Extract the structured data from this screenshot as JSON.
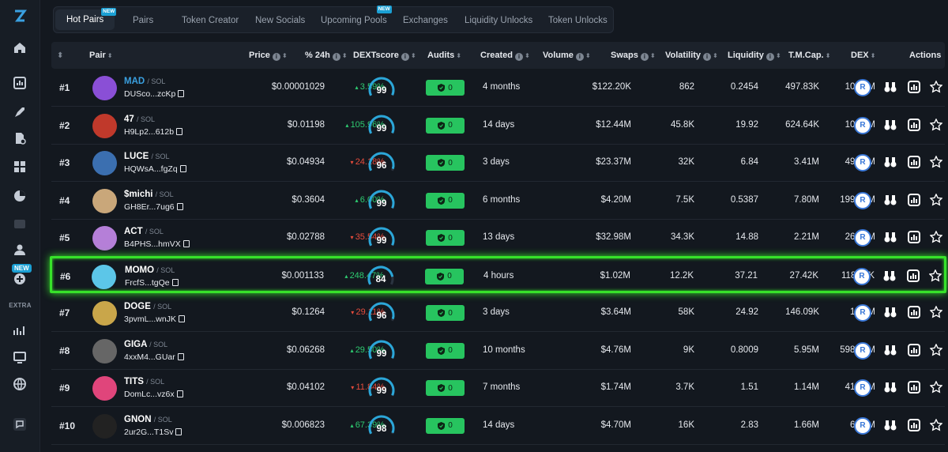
{
  "tabs": [
    {
      "label": "Hot Pairs",
      "badge": "NEW"
    },
    {
      "label": "Pairs"
    },
    {
      "label": "Token Creator"
    },
    {
      "label": "New Socials"
    },
    {
      "label": "Upcoming Pools",
      "badge": "NEW"
    },
    {
      "label": "Exchanges"
    },
    {
      "label": "Liquidity Unlocks"
    },
    {
      "label": "Token Unlocks"
    }
  ],
  "sidebar": {
    "new_badge": "NEW",
    "extra_label": "EXTRA",
    "icons": [
      "logo-icon",
      "home-icon",
      "chart-icon",
      "rocket-icon",
      "file-check-icon",
      "apps-icon",
      "pie-chart-icon",
      "wallet-icon",
      "user-icon",
      "plus-circle-icon",
      "growth-chart-icon",
      "monitor-icon",
      "globe-icon",
      "feedback-icon"
    ]
  },
  "columns": {
    "pair": "Pair",
    "price": "Price",
    "change": "% 24h",
    "dextscore": "DEXTscore",
    "audits": "Audits",
    "created": "Created",
    "volume": "Volume",
    "swaps": "Swaps",
    "volatility": "Volatility",
    "liquidity": "Liquidity",
    "tmcap": "T.M.Cap.",
    "dex": "DEX",
    "actions": "Actions"
  },
  "rows": [
    {
      "rank": "#1",
      "name": "MAD",
      "quote": "/ SOL",
      "addr": "DUSco...zcKp",
      "price": "$0.00001029",
      "change": "3.59%",
      "dir": "up",
      "score": 99,
      "audit": "0",
      "created": "4 months",
      "volume": "$122.20K",
      "swaps": "862",
      "volatility": "0.2454",
      "liquidity": "497.83K",
      "mcap": "10.29M",
      "highlight": false,
      "avatar_color": "#8a4fd6"
    },
    {
      "rank": "#2",
      "name": "47",
      "quote": "/ SOL",
      "addr": "H9Lp2...612b",
      "price": "$0.01198",
      "change": "105.96%",
      "dir": "up",
      "score": 99,
      "audit": "0",
      "created": "14 days",
      "volume": "$12.44M",
      "swaps": "45.8K",
      "volatility": "19.92",
      "liquidity": "624.64K",
      "mcap": "10.19M",
      "highlight": false,
      "avatar_color": "#c0392b"
    },
    {
      "rank": "#3",
      "name": "LUCE",
      "quote": "/ SOL",
      "addr": "HQWsA...fgZq",
      "price": "$0.04934",
      "change": "24.18%",
      "dir": "down",
      "score": 96,
      "audit": "0",
      "created": "3 days",
      "volume": "$23.37M",
      "swaps": "32K",
      "volatility": "6.84",
      "liquidity": "3.41M",
      "mcap": "49.74M",
      "highlight": false,
      "avatar_color": "#3b6fb0"
    },
    {
      "rank": "#4",
      "name": "$michi",
      "quote": "/ SOL",
      "addr": "GH8Er...7ug6",
      "price": "$0.3604",
      "change": "6.00%",
      "dir": "up",
      "score": 99,
      "audit": "0",
      "created": "6 months",
      "volume": "$4.20M",
      "swaps": "7.5K",
      "volatility": "0.5387",
      "liquidity": "7.80M",
      "mcap": "199.68M",
      "highlight": false,
      "avatar_color": "#c9a77a"
    },
    {
      "rank": "#5",
      "name": "ACT",
      "quote": "/ SOL",
      "addr": "B4PHS...hmVX",
      "price": "$0.02788",
      "change": "35.54%",
      "dir": "down",
      "score": 99,
      "audit": "0",
      "created": "13 days",
      "volume": "$32.98M",
      "swaps": "34.3K",
      "volatility": "14.88",
      "liquidity": "2.21M",
      "mcap": "26.41M",
      "highlight": false,
      "avatar_color": "#b57fd8"
    },
    {
      "rank": "#6",
      "name": "MOMO",
      "quote": "/ SOL",
      "addr": "FrcfS...tgQe",
      "price": "$0.001133",
      "change": "248.47%",
      "dir": "up",
      "score": 84,
      "audit": "0",
      "created": "4 hours",
      "volume": "$1.02M",
      "swaps": "12.2K",
      "volatility": "37.21",
      "liquidity": "27.42K",
      "mcap": "118.59K",
      "highlight": true,
      "avatar_color": "#5cc6e8"
    },
    {
      "rank": "#7",
      "name": "DOGE",
      "quote": "/ SOL",
      "addr": "3pvmL...wnJK",
      "price": "$0.1264",
      "change": "29.11%",
      "dir": "down",
      "score": 96,
      "audit": "0",
      "created": "3 days",
      "volume": "$3.64M",
      "swaps": "58K",
      "volatility": "24.92",
      "liquidity": "146.09K",
      "mcap": "1.26M",
      "highlight": false,
      "avatar_color": "#c9a64a"
    },
    {
      "rank": "#8",
      "name": "GIGA",
      "quote": "/ SOL",
      "addr": "4xxM4...GUar",
      "price": "$0.06268",
      "change": "29.50%",
      "dir": "up",
      "score": 99,
      "audit": "0",
      "created": "10 months",
      "volume": "$4.76M",
      "swaps": "9K",
      "volatility": "0.8009",
      "liquidity": "5.95M",
      "mcap": "598.89M",
      "highlight": false,
      "avatar_color": "#666666"
    },
    {
      "rank": "#9",
      "name": "TITS",
      "quote": "/ SOL",
      "addr": "DomLc...vz6x",
      "price": "$0.04102",
      "change": "11.84%",
      "dir": "down",
      "score": 99,
      "audit": "0",
      "created": "7 months",
      "volume": "$1.74M",
      "swaps": "3.7K",
      "volatility": "1.51",
      "liquidity": "1.14M",
      "mcap": "41.24M",
      "highlight": false,
      "avatar_color": "#e0457b"
    },
    {
      "rank": "#10",
      "name": "GNON",
      "quote": "/ SOL",
      "addr": "2ur2G...T1Sv",
      "price": "$0.006823",
      "change": "67.39%",
      "dir": "up",
      "score": 98,
      "audit": "0",
      "created": "14 days",
      "volume": "$4.70M",
      "swaps": "16K",
      "volatility": "2.83",
      "liquidity": "1.66M",
      "mcap": "6.83M",
      "highlight": false,
      "avatar_color": "#222222"
    }
  ],
  "colors": {
    "accent": "#1ba0d4",
    "up": "#2ecc71",
    "down": "#e74c3c",
    "audit_ok": "#27c45f",
    "highlight": "#37e22a"
  }
}
